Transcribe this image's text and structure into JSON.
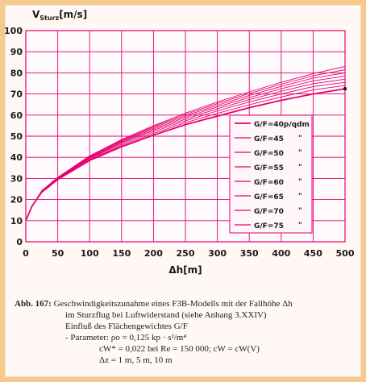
{
  "chart_data": {
    "type": "line",
    "ylabel_main": "V",
    "ylabel_sub": "Sturz",
    "ylabel_unit": "[m/s]",
    "xlabel": "Δh[m]",
    "xlim": [
      0,
      500
    ],
    "ylim": [
      0,
      100
    ],
    "xticks": [
      0,
      50,
      100,
      150,
      200,
      250,
      300,
      350,
      400,
      450,
      500
    ],
    "yticks": [
      0,
      10,
      20,
      30,
      40,
      50,
      60,
      70,
      80,
      90,
      100
    ],
    "grid": true,
    "legend_position": "center-right",
    "line_color": "#e4006e",
    "x": [
      0,
      10,
      25,
      50,
      75,
      100,
      150,
      200,
      250,
      300,
      350,
      400,
      450,
      500
    ],
    "series": [
      {
        "name": "G/F=40p/qdm",
        "values": [
          10,
          17,
          23.5,
          29.5,
          34,
          38.5,
          45,
          50.5,
          55.5,
          59.5,
          63.5,
          67,
          70,
          72.5
        ]
      },
      {
        "name": "G/F=45",
        "values": [
          10,
          17,
          23.6,
          29.7,
          34.3,
          38.9,
          45.6,
          51.3,
          56.4,
          60.8,
          64.9,
          68.6,
          71.9,
          74
        ]
      },
      {
        "name": "G/F=50",
        "values": [
          10,
          17,
          23.7,
          29.9,
          34.6,
          39.3,
          46.2,
          52.1,
          57.3,
          62,
          66.2,
          70,
          73.5,
          75.5
        ]
      },
      {
        "name": "G/F=55",
        "values": [
          10,
          17,
          23.8,
          30,
          34.8,
          39.6,
          46.7,
          52.8,
          58.1,
          63,
          67.3,
          71.3,
          74.9,
          77
        ]
      },
      {
        "name": "G/F=60",
        "values": [
          10,
          17,
          23.9,
          30.2,
          35,
          39.9,
          47.2,
          53.4,
          58.9,
          63.9,
          68.3,
          72.5,
          76.2,
          78.5
        ]
      },
      {
        "name": "G/F=65",
        "values": [
          10,
          17,
          24,
          30.3,
          35.2,
          40.2,
          47.6,
          54,
          59.6,
          64.7,
          69.3,
          73.6,
          77.5,
          80
        ]
      },
      {
        "name": "G/F=70",
        "values": [
          10,
          17,
          24.1,
          30.4,
          35.4,
          40.5,
          48,
          54.5,
          60.3,
          65.5,
          70.2,
          74.6,
          78.6,
          81.5
        ]
      },
      {
        "name": "G/F=75",
        "values": [
          10,
          17,
          24.2,
          30.5,
          35.6,
          40.7,
          48.4,
          55,
          60.9,
          66.2,
          71,
          75.5,
          79.6,
          83
        ]
      }
    ],
    "legend_marks": [
      "",
      "\"",
      "\"",
      "\"",
      "\"",
      "\"",
      "\"",
      "\""
    ]
  },
  "caption": {
    "fig_label": "Abb. 167:",
    "line1": "Geschwindigkeitszunahme eines F3B-Modells mit der Fallhöhe  Δh",
    "line2": "im Sturzflug bei Luftwiderstand  (siehe Anhang  3.XXIV)",
    "line3": "Einfluß des Flächengewichtes  G/F",
    "line4": "- Parameter:  ρo = 0,125 kp · s²/m⁴",
    "line5": "cW* = 0,022  bei  Re = 150 000;   cW = cW(V)",
    "line6": "Δz = 1 m,  5 m,  10 m"
  },
  "colors": {
    "frame": "#f7c98d",
    "grid": "#e4006e",
    "text": "#1a1a1a"
  }
}
